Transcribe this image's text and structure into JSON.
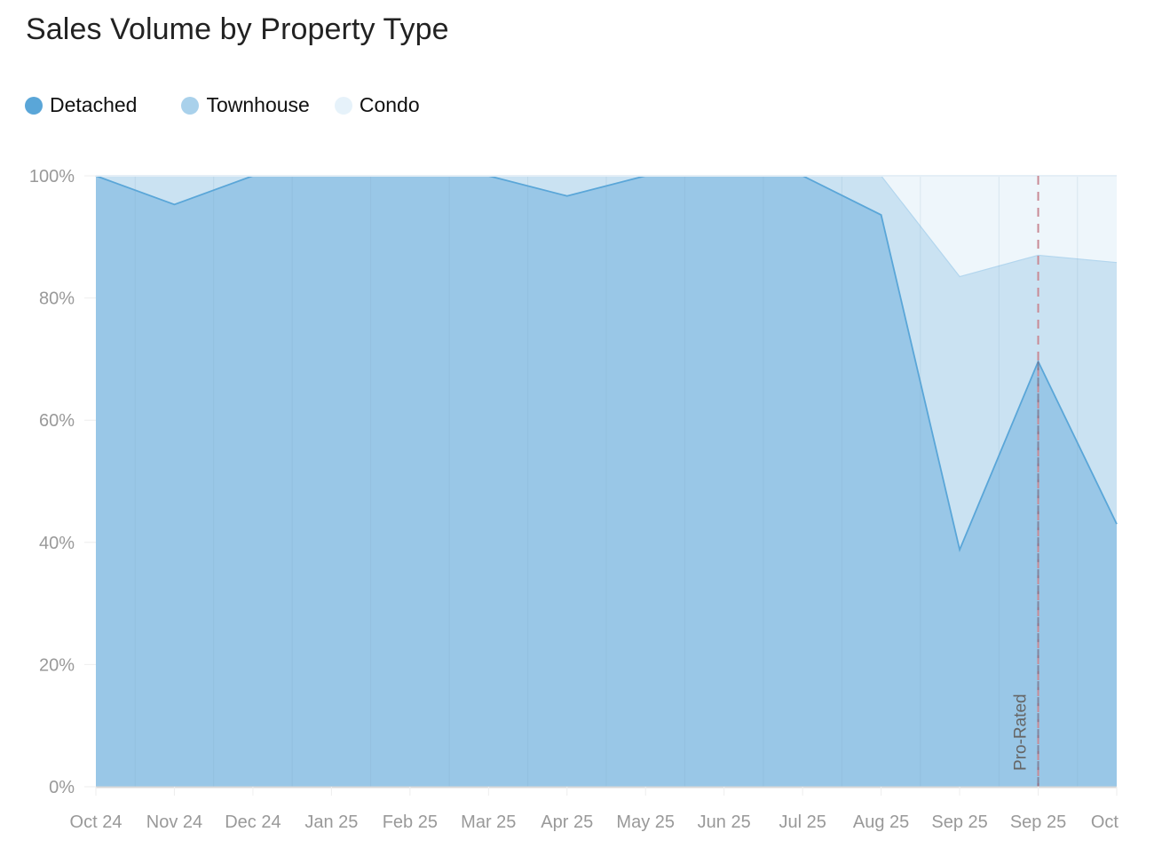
{
  "header": {
    "title": "Sales Volume by Property Type"
  },
  "legend": [
    {
      "label": "Detached",
      "color": "#5aa6d8"
    },
    {
      "label": "Townhouse",
      "color": "#a9d1eb"
    },
    {
      "label": "Condo",
      "color": "#e6f2fa"
    }
  ],
  "annotation": {
    "label": "Pro-Rated",
    "color": "#c98a95"
  },
  "chart_data": {
    "type": "area",
    "stacked": true,
    "normalized_percent": true,
    "title": "Sales Volume by Property Type",
    "xlabel": "",
    "ylabel": "",
    "ylim": [
      0,
      100
    ],
    "yticks": [
      "0%",
      "20%",
      "40%",
      "60%",
      "80%",
      "100%"
    ],
    "categories": [
      "Oct 24",
      "Nov 24",
      "Dec 24",
      "Jan 25",
      "Feb 25",
      "Mar 25",
      "Apr 25",
      "May 25",
      "Jun 25",
      "Jul 25",
      "Aug 25",
      "Sep 25",
      "Sep 25",
      "Oct"
    ],
    "series": [
      {
        "name": "Detached",
        "values": [
          100,
          95.3,
          100,
          100,
          100,
          100,
          96.7,
          100,
          100,
          100,
          93.6,
          38.8,
          69.6,
          43.0
        ]
      },
      {
        "name": "Townhouse",
        "values": [
          0,
          4.7,
          0,
          0,
          0,
          0,
          3.3,
          0,
          0,
          0,
          6.4,
          44.7,
          17.4,
          42.8
        ]
      },
      {
        "name": "Condo",
        "values": [
          0,
          0,
          0,
          0,
          0,
          0,
          0,
          0,
          0,
          0,
          0,
          16.5,
          13.0,
          14.2
        ]
      }
    ],
    "annotations": [
      {
        "type": "vertical-dashed-line",
        "x_index": 12,
        "label": "Pro-Rated"
      }
    ],
    "grid": true,
    "legend_position": "top-left"
  }
}
